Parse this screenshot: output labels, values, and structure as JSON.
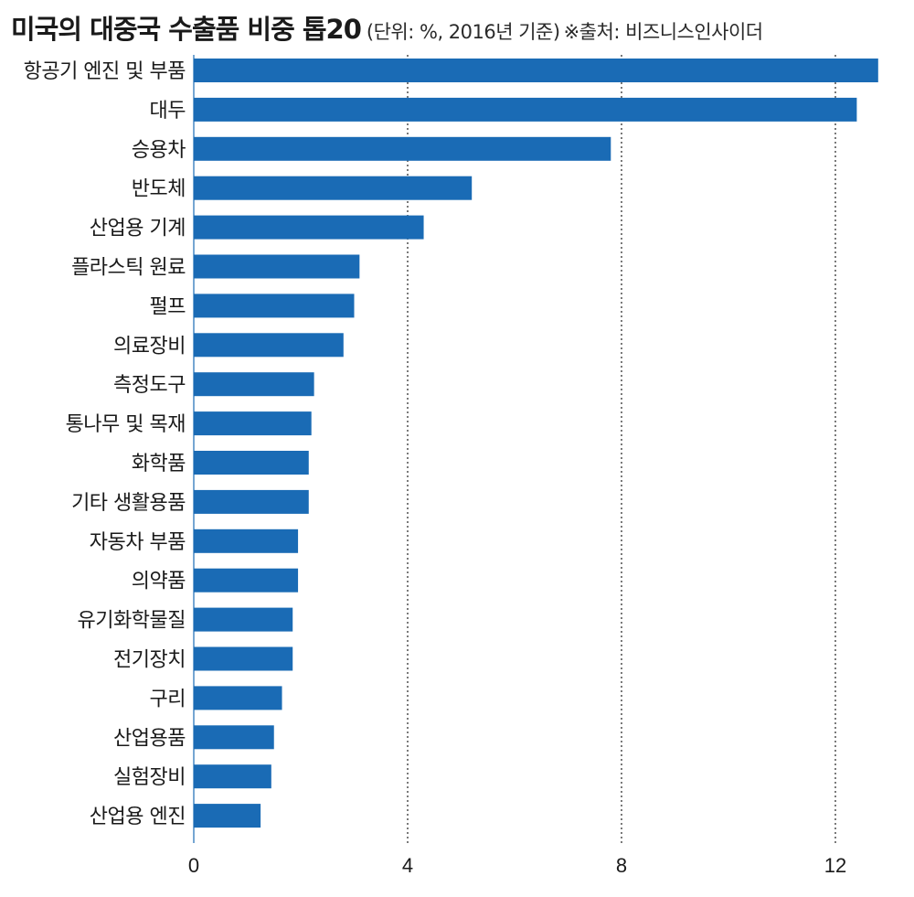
{
  "header": {
    "title": "미국의 대중국 수출품 비중 톱20",
    "subtitle": "(단위: %, 2016년 기준)",
    "source": "※출처: 비즈니스인사이더"
  },
  "colors": {
    "bar": "#1a6bb5",
    "grid": "#333333",
    "text": "#1a1a1a"
  },
  "chart_data": {
    "type": "bar",
    "orientation": "horizontal",
    "title": "미국의 대중국 수출품 비중 톱20",
    "subtitle": "(단위: %, 2016년 기준)",
    "source": "※출처: 비즈니스인사이더",
    "xlabel": "",
    "ylabel": "",
    "xlim": [
      0,
      13
    ],
    "xticks": [
      0,
      4,
      8,
      12
    ],
    "grid": "vertical-dotted",
    "categories": [
      "항공기 엔진 및 부품",
      "대두",
      "승용차",
      "반도체",
      "산업용 기계",
      "플라스틱 원료",
      "펄프",
      "의료장비",
      "측정도구",
      "통나무 및 목재",
      "화학품",
      "기타 생활용품",
      "자동차 부품",
      "의약품",
      "유기화학물질",
      "전기장치",
      "구리",
      "산업용품",
      "실험장비",
      "산업용 엔진"
    ],
    "values": [
      12.8,
      12.4,
      7.8,
      5.2,
      4.3,
      3.1,
      3.0,
      2.8,
      2.25,
      2.2,
      2.15,
      2.15,
      1.95,
      1.95,
      1.85,
      1.85,
      1.65,
      1.5,
      1.45,
      1.25
    ]
  }
}
